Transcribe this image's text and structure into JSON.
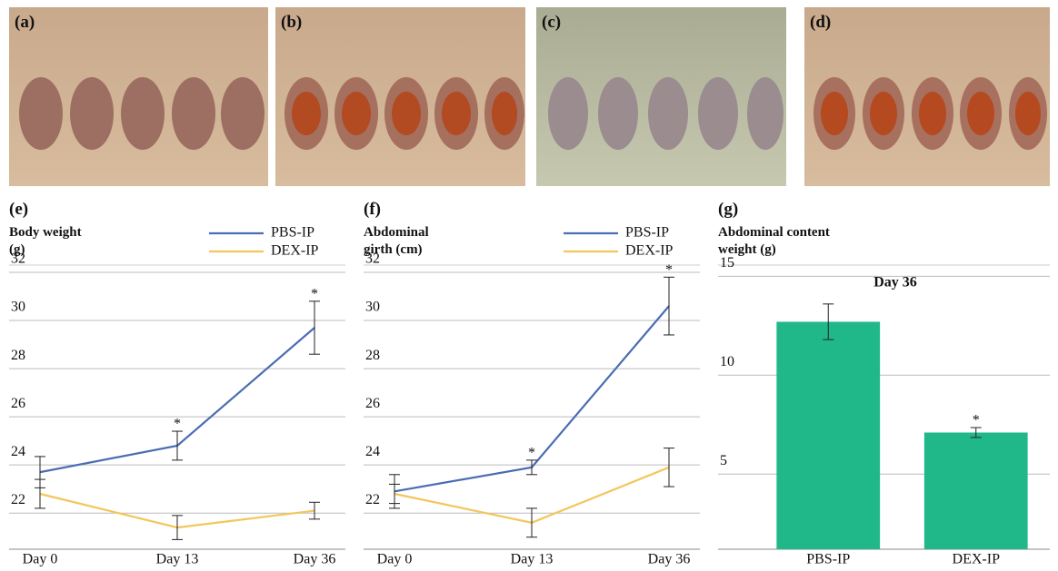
{
  "photos": [
    {
      "label": "(a)"
    },
    {
      "label": "(b)"
    },
    {
      "label": "(c)"
    },
    {
      "label": "(d)"
    }
  ],
  "chart_data": [
    {
      "type": "line",
      "panel": "(e)",
      "title": "Body weight (g)",
      "categories": [
        "Day 0",
        "Day 13",
        "Day 36"
      ],
      "ylim": [
        20.5,
        32
      ],
      "yticks": [
        22,
        24,
        26,
        28,
        30,
        32
      ],
      "grid": true,
      "series": [
        {
          "name": "PBS-IP",
          "color": "#4a6cb3",
          "values": [
            23.7,
            24.8,
            29.7
          ],
          "errors": [
            0.65,
            0.6,
            1.1
          ],
          "notes": [
            null,
            "*",
            "*"
          ]
        },
        {
          "name": "DEX-IP",
          "color": "#f2c75c",
          "values": [
            22.8,
            21.4,
            22.1
          ],
          "errors": [
            0.6,
            0.5,
            0.35
          ],
          "notes": [
            null,
            null,
            null
          ]
        }
      ]
    },
    {
      "type": "line",
      "panel": "(f)",
      "title": "Abdominal girth (cm)",
      "categories": [
        "Day 0",
        "Day 13",
        "Day 36"
      ],
      "ylim": [
        20.5,
        32
      ],
      "yticks": [
        22,
        24,
        26,
        28,
        30,
        32
      ],
      "grid": true,
      "series": [
        {
          "name": "PBS-IP",
          "color": "#4a6cb3",
          "values": [
            22.9,
            23.9,
            30.6
          ],
          "errors": [
            0.7,
            0.3,
            1.2
          ],
          "notes": [
            null,
            "*",
            "*"
          ]
        },
        {
          "name": "DEX-IP",
          "color": "#f2c75c",
          "values": [
            22.8,
            21.6,
            23.9
          ],
          "errors": [
            0.4,
            0.6,
            0.8
          ],
          "notes": [
            null,
            null,
            null
          ]
        }
      ]
    },
    {
      "type": "bar",
      "panel": "(g)",
      "title": "Abdominal content weight (g)",
      "subtitle": "Day 36",
      "categories": [
        "PBS-IP",
        "DEX-IP"
      ],
      "color": "#21b889",
      "values": [
        12.7,
        7.1
      ],
      "errors": [
        0.9,
        0.25
      ],
      "notes": [
        null,
        "*"
      ],
      "ylim": [
        1.2,
        15.2
      ],
      "yticks": [
        5,
        10,
        15
      ],
      "grid": true
    }
  ]
}
